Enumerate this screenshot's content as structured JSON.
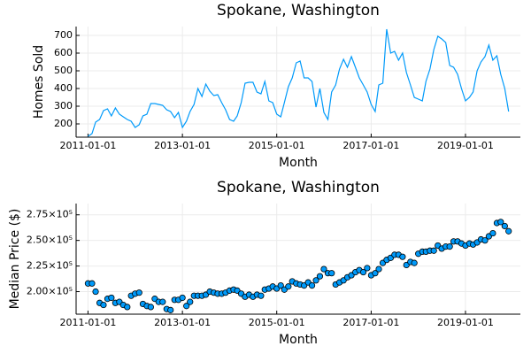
{
  "chart_data": [
    {
      "type": "line",
      "title": "Spokane, Washington",
      "xlabel": "Month",
      "ylabel": "Homes Sold",
      "color": "#009afa",
      "grid": true,
      "xlim": [
        "2010-10-01",
        "2020-03-01"
      ],
      "xticks": [
        "2011-01-01",
        "2013-01-01",
        "2015-01-01",
        "2017-01-01",
        "2019-01-01"
      ],
      "ylim": [
        125,
        750
      ],
      "yticks": [
        200,
        300,
        400,
        500,
        600,
        700
      ],
      "x": [
        "2011-01-01",
        "2011-02-01",
        "2011-03-01",
        "2011-04-01",
        "2011-05-01",
        "2011-06-01",
        "2011-07-01",
        "2011-08-01",
        "2011-09-01",
        "2011-10-01",
        "2011-11-01",
        "2011-12-01",
        "2012-01-01",
        "2012-02-01",
        "2012-03-01",
        "2012-04-01",
        "2012-05-01",
        "2012-06-01",
        "2012-07-01",
        "2012-08-01",
        "2012-09-01",
        "2012-10-01",
        "2012-11-01",
        "2012-12-01",
        "2013-01-01",
        "2013-02-01",
        "2013-03-01",
        "2013-04-01",
        "2013-05-01",
        "2013-06-01",
        "2013-07-01",
        "2013-08-01",
        "2013-09-01",
        "2013-10-01",
        "2013-11-01",
        "2013-12-01",
        "2014-01-01",
        "2014-02-01",
        "2014-03-01",
        "2014-04-01",
        "2014-05-01",
        "2014-06-01",
        "2014-07-01",
        "2014-08-01",
        "2014-09-01",
        "2014-10-01",
        "2014-11-01",
        "2014-12-01",
        "2015-01-01",
        "2015-02-01",
        "2015-03-01",
        "2015-04-01",
        "2015-05-01",
        "2015-06-01",
        "2015-07-01",
        "2015-08-01",
        "2015-09-01",
        "2015-10-01",
        "2015-11-01",
        "2015-12-01",
        "2016-01-01",
        "2016-02-01",
        "2016-03-01",
        "2016-04-01",
        "2016-05-01",
        "2016-06-01",
        "2016-07-01",
        "2016-08-01",
        "2016-09-01",
        "2016-10-01",
        "2016-11-01",
        "2016-12-01",
        "2017-01-01",
        "2017-02-01",
        "2017-03-01",
        "2017-04-01",
        "2017-05-01",
        "2017-06-01",
        "2017-07-01",
        "2017-08-01",
        "2017-09-01",
        "2017-10-01",
        "2017-11-01",
        "2017-12-01",
        "2018-01-01",
        "2018-02-01",
        "2018-03-01",
        "2018-04-01",
        "2018-05-01",
        "2018-06-01",
        "2018-07-01",
        "2018-08-01",
        "2018-09-01",
        "2018-10-01",
        "2018-11-01",
        "2018-12-01",
        "2019-01-01",
        "2019-02-01",
        "2019-03-01",
        "2019-04-01",
        "2019-05-01",
        "2019-06-01",
        "2019-07-01",
        "2019-08-01",
        "2019-09-01",
        "2019-10-01",
        "2019-11-01",
        "2019-12-01"
      ],
      "values": [
        130,
        145,
        210,
        225,
        275,
        285,
        245,
        290,
        255,
        240,
        225,
        215,
        180,
        195,
        245,
        255,
        315,
        315,
        310,
        305,
        280,
        270,
        235,
        265,
        180,
        215,
        270,
        310,
        400,
        355,
        425,
        385,
        360,
        365,
        320,
        280,
        225,
        215,
        245,
        320,
        430,
        435,
        435,
        380,
        370,
        440,
        330,
        320,
        255,
        240,
        320,
        410,
        460,
        545,
        555,
        460,
        460,
        440,
        295,
        400,
        265,
        225,
        380,
        420,
        510,
        565,
        520,
        580,
        520,
        460,
        420,
        380,
        310,
        270,
        420,
        430,
        735,
        600,
        610,
        560,
        600,
        490,
        420,
        350,
        340,
        330,
        440,
        510,
        620,
        695,
        680,
        660,
        530,
        520,
        480,
        400,
        330,
        350,
        380,
        500,
        550,
        580,
        645,
        560,
        585,
        480,
        400,
        270
      ]
    },
    {
      "type": "scatter",
      "title": "Spokane, Washington",
      "xlabel": "Month",
      "ylabel": "Median Price ($)",
      "color": "#009afa",
      "grid": true,
      "xlim": [
        "2010-10-01",
        "2020-03-01"
      ],
      "xticks": [
        "2011-01-01",
        "2013-01-01",
        "2015-01-01",
        "2017-01-01",
        "2019-01-01"
      ],
      "ylim": [
        178000,
        286000
      ],
      "yticks": [
        {
          "value": 200000,
          "label": "2.00×10⁵"
        },
        {
          "value": 225000,
          "label": "2.25×10⁵"
        },
        {
          "value": 250000,
          "label": "2.50×10⁵"
        },
        {
          "value": 275000,
          "label": "2.75×10⁵"
        }
      ],
      "x": [
        "2011-01-01",
        "2011-02-01",
        "2011-03-01",
        "2011-04-01",
        "2011-05-01",
        "2011-06-01",
        "2011-07-01",
        "2011-08-01",
        "2011-09-01",
        "2011-10-01",
        "2011-11-01",
        "2011-12-01",
        "2012-01-01",
        "2012-02-01",
        "2012-03-01",
        "2012-04-01",
        "2012-05-01",
        "2012-06-01",
        "2012-07-01",
        "2012-08-01",
        "2012-09-01",
        "2012-10-01",
        "2012-11-01",
        "2012-12-01",
        "2013-01-01",
        "2013-02-01",
        "2013-03-01",
        "2013-04-01",
        "2013-05-01",
        "2013-06-01",
        "2013-07-01",
        "2013-08-01",
        "2013-09-01",
        "2013-10-01",
        "2013-11-01",
        "2013-12-01",
        "2014-01-01",
        "2014-02-01",
        "2014-03-01",
        "2014-04-01",
        "2014-05-01",
        "2014-06-01",
        "2014-07-01",
        "2014-08-01",
        "2014-09-01",
        "2014-10-01",
        "2014-11-01",
        "2014-12-01",
        "2015-01-01",
        "2015-02-01",
        "2015-03-01",
        "2015-04-01",
        "2015-05-01",
        "2015-06-01",
        "2015-07-01",
        "2015-08-01",
        "2015-09-01",
        "2015-10-01",
        "2015-11-01",
        "2015-12-01",
        "2016-01-01",
        "2016-02-01",
        "2016-03-01",
        "2016-04-01",
        "2016-05-01",
        "2016-06-01",
        "2016-07-01",
        "2016-08-01",
        "2016-09-01",
        "2016-10-01",
        "2016-11-01",
        "2016-12-01",
        "2017-01-01",
        "2017-02-01",
        "2017-03-01",
        "2017-04-01",
        "2017-05-01",
        "2017-06-01",
        "2017-07-01",
        "2017-08-01",
        "2017-09-01",
        "2017-10-01",
        "2017-11-01",
        "2017-12-01",
        "2018-01-01",
        "2018-02-01",
        "2018-03-01",
        "2018-04-01",
        "2018-05-01",
        "2018-06-01",
        "2018-07-01",
        "2018-08-01",
        "2018-09-01",
        "2018-10-01",
        "2018-11-01",
        "2018-12-01",
        "2019-01-01",
        "2019-02-01",
        "2019-03-01",
        "2019-04-01",
        "2019-05-01",
        "2019-06-01",
        "2019-07-01",
        "2019-08-01",
        "2019-09-01",
        "2019-10-01",
        "2019-11-01",
        "2019-12-01"
      ],
      "values": [
        208000,
        208000,
        200000,
        189000,
        187000,
        193000,
        194000,
        189000,
        190000,
        187000,
        185000,
        196000,
        198000,
        199000,
        188000,
        186000,
        185000,
        193000,
        190000,
        190000,
        183000,
        182000,
        192000,
        192000,
        194000,
        186000,
        190000,
        196000,
        196000,
        196000,
        197000,
        200000,
        199000,
        198000,
        198000,
        199000,
        201000,
        202000,
        201000,
        198000,
        195000,
        197000,
        195000,
        197000,
        196000,
        202000,
        203000,
        205000,
        203000,
        206000,
        202000,
        205000,
        210000,
        208000,
        207000,
        206000,
        209000,
        206000,
        211000,
        215000,
        222000,
        218000,
        218000,
        207000,
        209000,
        211000,
        214000,
        216000,
        219000,
        221000,
        219000,
        223000,
        216000,
        218000,
        222000,
        228000,
        231000,
        233000,
        236000,
        236000,
        234000,
        226000,
        229000,
        228000,
        237000,
        239000,
        239000,
        240000,
        240000,
        245000,
        242000,
        244000,
        244000,
        249000,
        249000,
        247000,
        245000,
        247000,
        246000,
        248000,
        251000,
        250000,
        254000,
        257000,
        267000,
        268000,
        264000,
        259000
      ]
    }
  ]
}
